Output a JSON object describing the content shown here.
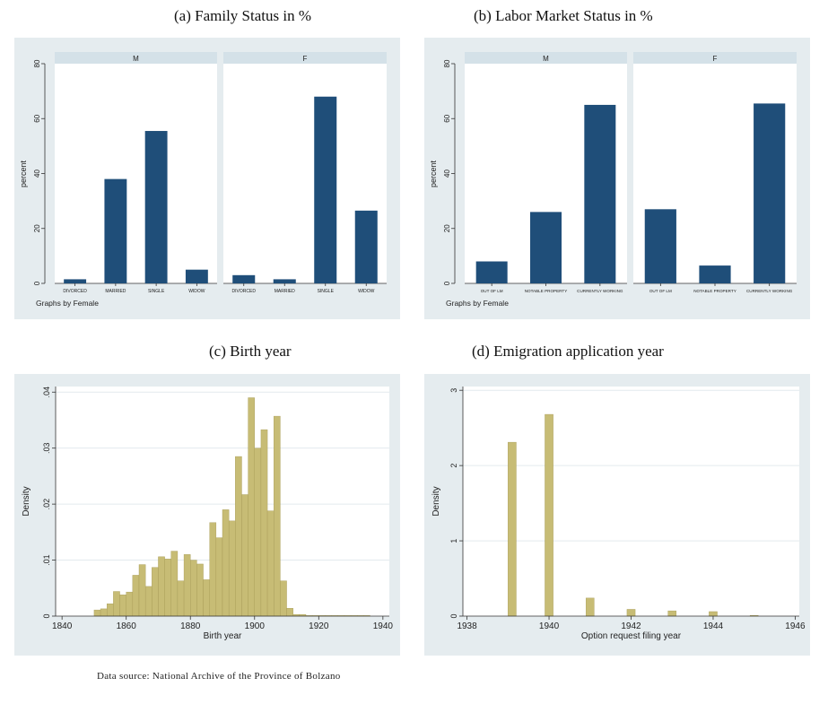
{
  "panels": [
    {
      "title": "(a) Family Status in %"
    },
    {
      "title": "(b) Labor Market Status in %"
    },
    {
      "title": "(c) Birth year"
    },
    {
      "title": "(d) Emigration application year"
    }
  ],
  "source": "Data source: National Archive of the Province of Bolzano",
  "colors": {
    "bar_blue": "#1f4e79",
    "bar_blue_dark": "#1b4168",
    "bar_olive": "#c7bc75",
    "frame_bg": "#e5ecef",
    "plot_bg": "#ffffff",
    "strip_bg": "#d4e1e8"
  },
  "chart_data": [
    {
      "type": "bar",
      "ylabel": "percent",
      "ylim": [
        0,
        80
      ],
      "yticks": [
        "0",
        "20",
        "40",
        "60",
        "80"
      ],
      "note": "Graphs by Female",
      "categories": [
        "DIVORCED",
        "MARRIED",
        "SINGLE",
        "WIDOW"
      ],
      "facets": [
        {
          "name": "M",
          "values": [
            1.5,
            38,
            55.5,
            5
          ]
        },
        {
          "name": "F",
          "values": [
            3,
            1.5,
            68,
            26.5
          ]
        }
      ]
    },
    {
      "type": "bar",
      "ylabel": "percent",
      "ylim": [
        0,
        80
      ],
      "yticks": [
        "0",
        "20",
        "40",
        "60",
        "80"
      ],
      "note": "Graphs by Female",
      "categories": [
        "OUT OF LM",
        "NOTABLE PROPERTY",
        "CURRENTLY WORKING"
      ],
      "facets": [
        {
          "name": "M",
          "values": [
            8,
            26,
            65
          ]
        },
        {
          "name": "F",
          "values": [
            27,
            6.5,
            65.5
          ]
        }
      ]
    },
    {
      "type": "bar",
      "subtype": "histogram",
      "xlabel": "Birth year",
      "ylabel": "Density",
      "xlim": [
        1838,
        1942
      ],
      "ylim": [
        0,
        0.041
      ],
      "xticks": [
        "1840",
        "1860",
        "1880",
        "1900",
        "1920",
        "1940"
      ],
      "yticks": [
        "0",
        ".01",
        ".02",
        ".03",
        ".04"
      ],
      "bin_width": 2,
      "bin_starts": [
        1850,
        1852,
        1854,
        1856,
        1858,
        1860,
        1862,
        1864,
        1866,
        1868,
        1870,
        1872,
        1874,
        1876,
        1878,
        1880,
        1882,
        1884,
        1886,
        1888,
        1890,
        1892,
        1894,
        1896,
        1898,
        1900,
        1902,
        1904,
        1906,
        1908,
        1910,
        1912,
        1914,
        1916,
        1918,
        1920,
        1922,
        1924,
        1926,
        1928,
        1930,
        1932,
        1934
      ],
      "values": [
        0.0011,
        0.0013,
        0.0022,
        0.0044,
        0.0038,
        0.0043,
        0.0073,
        0.0092,
        0.0053,
        0.0087,
        0.0106,
        0.0102,
        0.0116,
        0.0063,
        0.011,
        0.01,
        0.0093,
        0.0065,
        0.0167,
        0.014,
        0.019,
        0.017,
        0.0285,
        0.0217,
        0.039,
        0.03,
        0.0333,
        0.0188,
        0.0357,
        0.0063,
        0.0014,
        0.0003,
        0.0003,
        0.0001,
        0.0001,
        0.0001,
        0.0001,
        0.0001,
        0.0001,
        0.0001,
        0.0001,
        0.0001,
        0.0001
      ]
    },
    {
      "type": "bar",
      "subtype": "histogram",
      "xlabel": "Option request filing year",
      "ylabel": "Density",
      "xlim": [
        1937.9,
        1946.1
      ],
      "ylim": [
        0,
        3.05
      ],
      "xticks": [
        "1938",
        "1940",
        "1942",
        "1944",
        "1946"
      ],
      "yticks": [
        "0",
        "1",
        "2",
        "3"
      ],
      "bin_width": 0.2,
      "bin_starts": [
        1939.0,
        1939.9,
        1940.9,
        1941.9,
        1942.9,
        1943.9,
        1944.9
      ],
      "values": [
        2.31,
        2.68,
        0.24,
        0.09,
        0.07,
        0.06,
        0.01
      ]
    }
  ]
}
